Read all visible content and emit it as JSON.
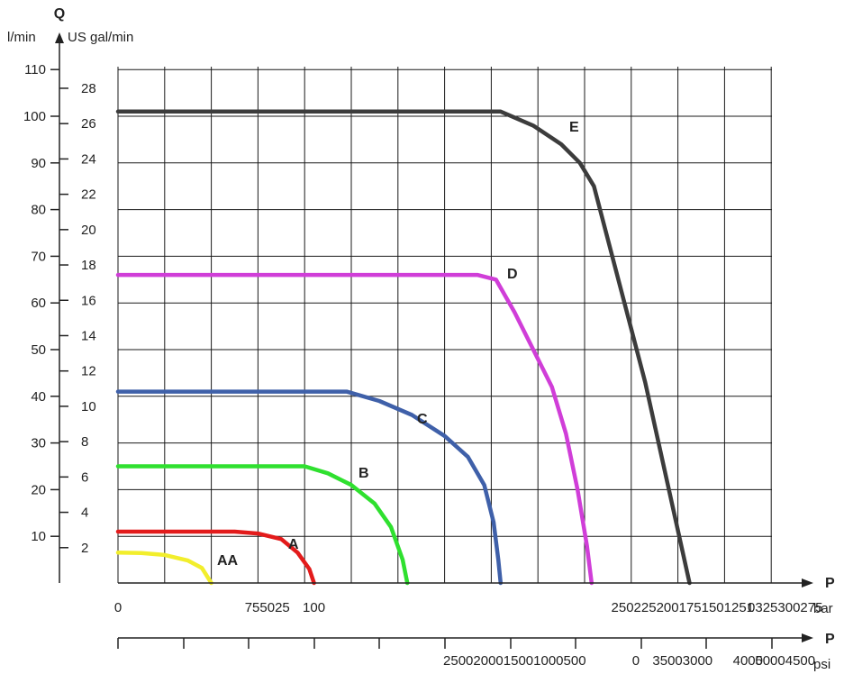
{
  "chart_data": {
    "type": "line",
    "title": "",
    "y_axis_letter": "Q",
    "y_unit_primary": "l/min",
    "y_unit_secondary": "US gal/min",
    "x_axis_letter": "P",
    "x_unit_primary": "bar",
    "x_unit_secondary": "psi",
    "xlim": [
      0,
      14
    ],
    "ylim": [
      0,
      110
    ],
    "grid": true,
    "y_ticks_lpm": [
      "10",
      "20",
      "30",
      "40",
      "50",
      "60",
      "70",
      "80",
      "90",
      "100",
      "110"
    ],
    "y_ticks_gpm": [
      "2",
      "4",
      "6",
      "8",
      "10",
      "12",
      "14",
      "16",
      "18",
      "20",
      "22",
      "24",
      "26",
      "28"
    ],
    "bar_tick_labels": [
      {
        "x": 0,
        "label": "0"
      },
      {
        "x": 3.2,
        "label": "755025"
      },
      {
        "x": 4.2,
        "label": "100"
      },
      {
        "x": 12.1,
        "label": "2502252001751501251"
      },
      {
        "x": 14.3,
        "label": "0325300275"
      }
    ],
    "psi_tick_labels": [
      {
        "x": 8.5,
        "label": "2500200015001000500"
      },
      {
        "x": 11.1,
        "label": "0"
      },
      {
        "x": 12.1,
        "label": "35003000"
      },
      {
        "x": 13.5,
        "label": "4000"
      },
      {
        "x": 14.3,
        "label": "50004500"
      }
    ],
    "series": [
      {
        "name": "AA",
        "color": "#f2ee2c",
        "points": [
          [
            0,
            6.5
          ],
          [
            0.5,
            6.4
          ],
          [
            1.0,
            6.0
          ],
          [
            1.5,
            4.8
          ],
          [
            1.8,
            3.2
          ],
          [
            2.0,
            0
          ]
        ]
      },
      {
        "name": "A",
        "color": "#e31b1b",
        "points": [
          [
            0,
            11
          ],
          [
            2.5,
            11
          ],
          [
            3.0,
            10.6
          ],
          [
            3.5,
            9.4
          ],
          [
            3.85,
            6.5
          ],
          [
            4.1,
            3.0
          ],
          [
            4.2,
            0
          ]
        ]
      },
      {
        "name": "B",
        "color": "#2fe02f",
        "points": [
          [
            0,
            25
          ],
          [
            4.0,
            25
          ],
          [
            4.5,
            23.5
          ],
          [
            5.0,
            21
          ],
          [
            5.5,
            17
          ],
          [
            5.85,
            12
          ],
          [
            6.1,
            5
          ],
          [
            6.2,
            0
          ]
        ]
      },
      {
        "name": "C",
        "color": "#3f60a9",
        "points": [
          [
            0,
            41
          ],
          [
            4.9,
            41
          ],
          [
            5.6,
            39
          ],
          [
            6.3,
            36
          ],
          [
            7.0,
            31.5
          ],
          [
            7.5,
            27
          ],
          [
            7.85,
            21
          ],
          [
            8.05,
            13
          ],
          [
            8.15,
            5
          ],
          [
            8.2,
            0
          ]
        ]
      },
      {
        "name": "D",
        "color": "#d03ed8",
        "points": [
          [
            0,
            66
          ],
          [
            7.7,
            66
          ],
          [
            8.1,
            65
          ],
          [
            8.5,
            58
          ],
          [
            8.9,
            50
          ],
          [
            9.3,
            42
          ],
          [
            9.6,
            32
          ],
          [
            9.85,
            20
          ],
          [
            10.05,
            8
          ],
          [
            10.15,
            0
          ]
        ]
      },
      {
        "name": "E",
        "color": "#3c3c3c",
        "points": [
          [
            0,
            101
          ],
          [
            8.2,
            101
          ],
          [
            8.9,
            98
          ],
          [
            9.5,
            94
          ],
          [
            9.9,
            90
          ],
          [
            10.2,
            85
          ],
          [
            11.3,
            43
          ],
          [
            12.25,
            0
          ]
        ]
      }
    ]
  }
}
